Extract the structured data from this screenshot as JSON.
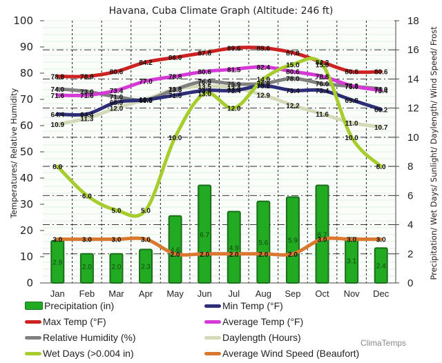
{
  "chart_data": {
    "type": "line",
    "title": "Havana, Cuba Climate Graph (Altitude: 246 ft)",
    "categories": [
      "Jan",
      "Feb",
      "Mar",
      "Apr",
      "May",
      "Jun",
      "Jul",
      "Aug",
      "Sep",
      "Oct",
      "Nov",
      "Dec"
    ],
    "left_axis": {
      "label": "Temperatures/ Relative Humidity",
      "range": [
        0,
        100
      ],
      "ticks": [
        "0",
        "10",
        "20",
        "30",
        "40",
        "50",
        "60",
        "70",
        "80",
        "90",
        "100"
      ]
    },
    "right_axis": {
      "label": "Precipitation/ Wet Days/ Sunlight/ Daylength/ Wind Speed/ Frost",
      "range": [
        0,
        18
      ],
      "ticks": [
        "0",
        "2",
        "4",
        "6",
        "8",
        "10",
        "12",
        "14",
        "16",
        "18"
      ]
    },
    "grid": true,
    "legend_position": "bottom",
    "series": [
      {
        "name": "Precipitation (in)",
        "type": "bar",
        "axis": "right",
        "color": "#22aa22",
        "values": [
          2.9,
          2.0,
          2.0,
          2.3,
          4.6,
          6.7,
          4.9,
          5.6,
          5.9,
          6.7,
          3.1,
          2.4
        ]
      },
      {
        "name": "Min Temp (°F)",
        "type": "line",
        "axis": "left",
        "color": "#2e2e78",
        "values": [
          64.4,
          64.4,
          68.9,
          69.8,
          71.6,
          73.4,
          73.4,
          75.2,
          73.4,
          73.4,
          69.8,
          66.2
        ]
      },
      {
        "name": "Max Temp (°F)",
        "type": "line",
        "axis": "left",
        "color": "#cc2222",
        "values": [
          78.8,
          78.8,
          80.6,
          84.2,
          86.0,
          87.8,
          89.6,
          89.6,
          87.8,
          84.2,
          80.6,
          80.6
        ]
      },
      {
        "name": "Average Temp (°F)",
        "type": "line",
        "axis": "left",
        "color": "#d63ad6",
        "values": [
          71.6,
          71.6,
          73.4,
          77.0,
          78.8,
          80.6,
          81.5,
          82.4,
          80.6,
          78.8,
          75.2,
          73.4
        ]
      },
      {
        "name": "Relative Humidity (%)",
        "type": "line",
        "axis": "left",
        "color": "#808080",
        "values": [
          74.0,
          73.0,
          71.0,
          69.8,
          73.8,
          76.9,
          75.9,
          76.0,
          78.0,
          76.0,
          75.0,
          74.0
        ]
      },
      {
        "name": "Daylength (Hours)",
        "type": "line",
        "axis": "right",
        "color": "#d4d9b8",
        "values": [
          10.9,
          11.3,
          12.0,
          12.6,
          13.3,
          13.5,
          13.4,
          12.9,
          12.2,
          11.6,
          11.0,
          10.7
        ]
      },
      {
        "name": "Wet Days (>0.004 in)",
        "type": "line",
        "axis": "right",
        "color": "#a6cc2e",
        "values": [
          8.0,
          6.0,
          5.0,
          5.0,
          10.0,
          13.0,
          12.0,
          14.0,
          15.0,
          15.0,
          10.0,
          8.0
        ]
      },
      {
        "name": "Average Wind Speed (Beaufort)",
        "type": "line",
        "axis": "right",
        "color": "#d9782e",
        "values": [
          3.0,
          3.0,
          3.0,
          3.0,
          2.0,
          2.0,
          2.0,
          2.0,
          2.0,
          3.0,
          3.0,
          3.0
        ]
      }
    ]
  },
  "legend": [
    {
      "label": "Precipitation (in)",
      "color": "#22aa22"
    },
    {
      "label": "Min Temp (°F)",
      "color": "#2e2e78"
    },
    {
      "label": "Max Temp (°F)",
      "color": "#cc2222"
    },
    {
      "label": "Average Temp (°F)",
      "color": "#d63ad6"
    },
    {
      "label": "Relative Humidity (%)",
      "color": "#808080"
    },
    {
      "label": "Daylength (Hours)",
      "color": "#d4d9b8"
    },
    {
      "label": "Wet Days (>0.004 in)",
      "color": "#a6cc2e"
    },
    {
      "label": "Average Wind Speed (Beaufort)",
      "color": "#d9782e"
    }
  ],
  "watermark": "ClimaTemps"
}
